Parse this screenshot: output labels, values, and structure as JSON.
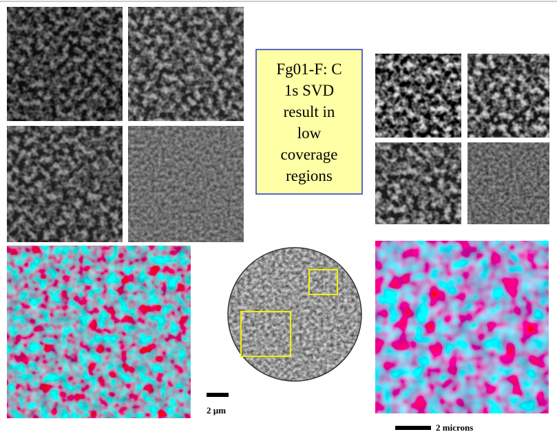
{
  "caption": {
    "lines": [
      "Fg01-F: C",
      "1s SVD",
      "result in",
      "low",
      "coverage",
      "regions"
    ]
  },
  "scale_bars": {
    "left": "2 µm",
    "right": "2 microns"
  }
}
